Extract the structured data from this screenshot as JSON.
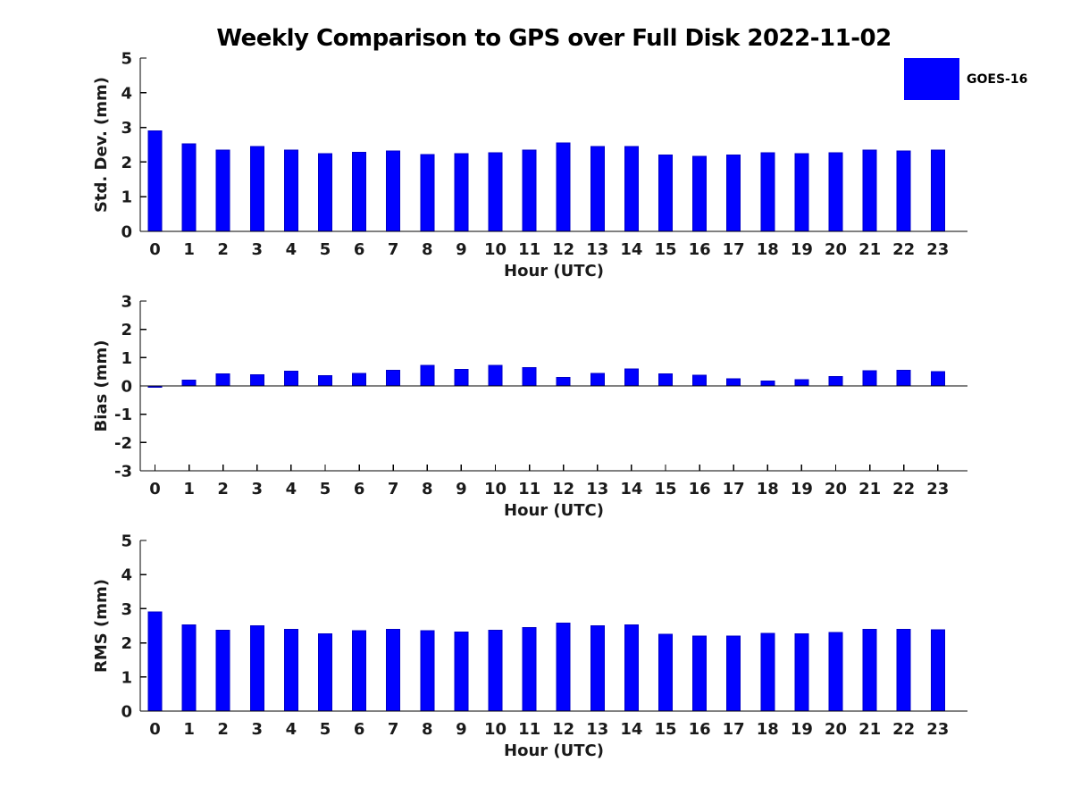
{
  "figure": {
    "title": "Weekly Comparison to GPS over Full Disk 2022-11-02",
    "legend": {
      "label": "GOES-16",
      "swatch_color": "#0000ff"
    },
    "colors": {
      "bar": "#0000fe",
      "axis": "#000000",
      "text": "#1a1a1a"
    }
  },
  "chart_data": [
    {
      "type": "bar",
      "series_name": "GOES-16",
      "ylabel": "Std. Dev. (mm)",
      "xlabel": "Hour (UTC)",
      "ylim": [
        0,
        5
      ],
      "yticks": [
        0,
        1,
        2,
        3,
        4,
        5
      ],
      "grid": false,
      "categories": [
        "0",
        "1",
        "2",
        "3",
        "4",
        "5",
        "6",
        "7",
        "8",
        "9",
        "10",
        "11",
        "12",
        "13",
        "14",
        "15",
        "16",
        "17",
        "18",
        "19",
        "20",
        "21",
        "22",
        "23"
      ],
      "values": [
        2.9,
        2.52,
        2.35,
        2.45,
        2.35,
        2.24,
        2.28,
        2.32,
        2.22,
        2.24,
        2.27,
        2.34,
        2.55,
        2.45,
        2.45,
        2.2,
        2.17,
        2.2,
        2.27,
        2.24,
        2.27,
        2.34,
        2.32,
        2.34
      ]
    },
    {
      "type": "bar",
      "series_name": "GOES-16",
      "ylabel": "Bias (mm)",
      "xlabel": "Hour (UTC)",
      "ylim": [
        -3,
        3
      ],
      "yticks": [
        -3,
        -2,
        -1,
        0,
        1,
        2,
        3
      ],
      "grid": false,
      "categories": [
        "0",
        "1",
        "2",
        "3",
        "4",
        "5",
        "6",
        "7",
        "8",
        "9",
        "10",
        "11",
        "12",
        "13",
        "14",
        "15",
        "16",
        "17",
        "18",
        "19",
        "20",
        "21",
        "22",
        "23"
      ],
      "values": [
        -0.05,
        0.2,
        0.42,
        0.4,
        0.52,
        0.37,
        0.45,
        0.55,
        0.73,
        0.58,
        0.73,
        0.65,
        0.3,
        0.45,
        0.6,
        0.42,
        0.38,
        0.26,
        0.17,
        0.22,
        0.33,
        0.53,
        0.55,
        0.5
      ]
    },
    {
      "type": "bar",
      "series_name": "GOES-16",
      "ylabel": "RMS (mm)",
      "xlabel": "Hour (UTC)",
      "ylim": [
        0,
        5
      ],
      "yticks": [
        0,
        1,
        2,
        3,
        4,
        5
      ],
      "grid": false,
      "categories": [
        "0",
        "1",
        "2",
        "3",
        "4",
        "5",
        "6",
        "7",
        "8",
        "9",
        "10",
        "11",
        "12",
        "13",
        "14",
        "15",
        "16",
        "17",
        "18",
        "19",
        "20",
        "21",
        "22",
        "23"
      ],
      "values": [
        2.9,
        2.52,
        2.37,
        2.5,
        2.4,
        2.27,
        2.35,
        2.4,
        2.35,
        2.32,
        2.37,
        2.45,
        2.58,
        2.5,
        2.52,
        2.25,
        2.2,
        2.2,
        2.28,
        2.27,
        2.3,
        2.4,
        2.4,
        2.38
      ]
    }
  ]
}
